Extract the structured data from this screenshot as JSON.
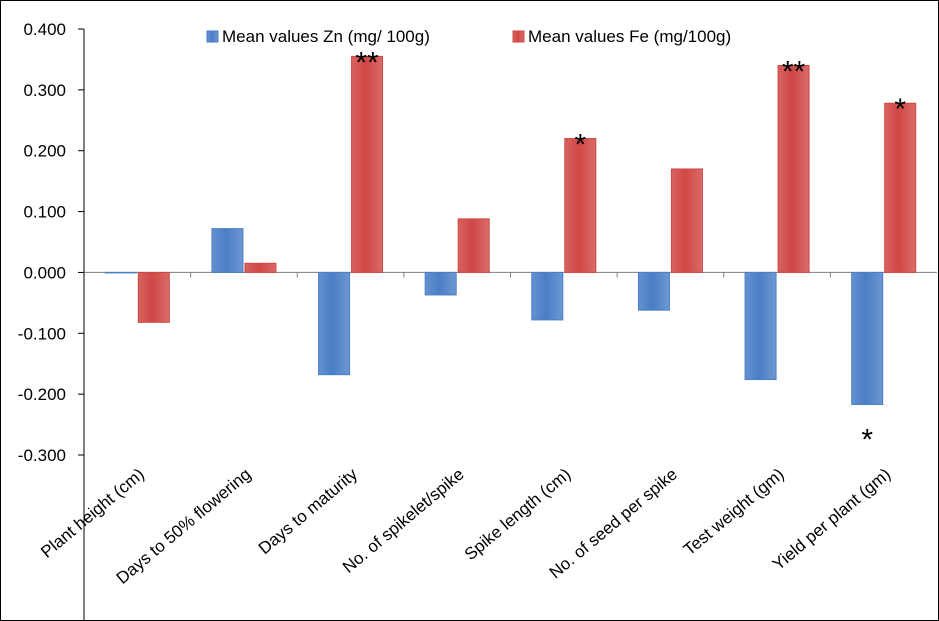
{
  "chart_data": {
    "type": "bar",
    "categories": [
      "Plant height (cm)",
      "Days to 50% flowering",
      "Days to maturity",
      "No. of spikelet/spike",
      "Spike length (cm)",
      "No. of seed per spike",
      "Test weight (gm)",
      "Yield per plant (gm)"
    ],
    "series": [
      {
        "name": "Mean values Zn (mg/ 100g)",
        "color": "#4a7ec6",
        "values": [
          0.0,
          0.072,
          -0.168,
          -0.037,
          -0.078,
          -0.062,
          -0.176,
          -0.217
        ]
      },
      {
        "name": "Mean values Fe (mg/100g)",
        "color": "#d04744",
        "values": [
          -0.082,
          0.015,
          0.355,
          0.088,
          0.22,
          0.17,
          0.34,
          0.278
        ]
      }
    ],
    "ylim": [
      -0.3,
      0.4
    ],
    "yticks": [
      "-0.300",
      "-0.200",
      "-0.100",
      "0.000",
      "0.100",
      "0.200",
      "0.300",
      "0.400"
    ],
    "ytick_values": [
      -0.3,
      -0.2,
      -0.1,
      0.0,
      0.1,
      0.2,
      0.3,
      0.4
    ],
    "grid": false,
    "legend": "top",
    "significance": [
      {
        "category": "Days to maturity",
        "series": 1,
        "mark": "**"
      },
      {
        "category": "Spike length (cm)",
        "series": 1,
        "mark": "*"
      },
      {
        "category": "Test weight (gm)",
        "series": 1,
        "mark": "**"
      },
      {
        "category": "Yield per plant (gm)",
        "series": 1,
        "mark": "*"
      },
      {
        "category": "Yield per plant (gm)",
        "series": 0,
        "mark": "*"
      }
    ]
  }
}
